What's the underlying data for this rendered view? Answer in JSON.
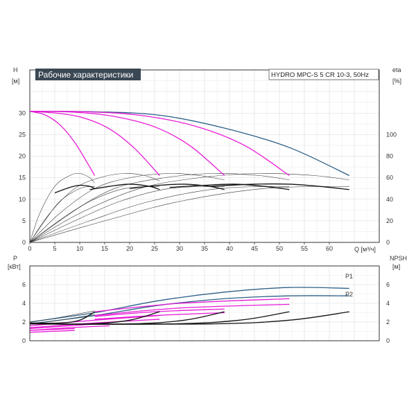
{
  "header": {
    "title": "Рабочие характеристики",
    "model": "HYDRO MPC-S 5 CR 10-3, 50Hz"
  },
  "colors": {
    "frame": "#333333",
    "grid": "#e1e1e1",
    "title_bg": "#3a4754",
    "blue": "#2b5f87",
    "magenta": "#e81ad7",
    "black": "#111111",
    "thin_black": "#333333"
  },
  "chart_data": [
    {
      "id": "top",
      "type": "line",
      "ylabel_left": "H",
      "ylabel_left_unit": "[м]",
      "ylabel_right": "eta",
      "ylabel_right_unit": "[%]",
      "xlabel": "Q [м³/ч]",
      "xlim": [
        0,
        70
      ],
      "ylim_left": [
        0,
        40
      ],
      "ylim_right": [
        0,
        160
      ],
      "xticks": [
        "0",
        "5",
        "10",
        "15",
        "20",
        "25",
        "30",
        "35",
        "40",
        "45",
        "50",
        "55",
        "60"
      ],
      "yticks_left": [
        "0",
        "5",
        "10",
        "15",
        "20",
        "25",
        "30"
      ],
      "yticks_right": [
        "0",
        "20",
        "40",
        "60",
        "80",
        "100"
      ],
      "grid": true,
      "head_curves": [
        {
          "name": "",
          "color": "blue",
          "x": [
            0,
            13,
            26,
            39,
            52,
            64
          ],
          "y": [
            30.4,
            30.3,
            29.5,
            26.5,
            22,
            15.5
          ]
        },
        {
          "name": "",
          "color": "magenta",
          "x": [
            0,
            3,
            6,
            9,
            12,
            13
          ],
          "y": [
            30.4,
            29.6,
            27.3,
            23.2,
            17.5,
            15.5
          ]
        },
        {
          "name": "",
          "color": "magenta",
          "x": [
            0,
            6,
            11,
            16,
            21,
            26
          ],
          "y": [
            30.4,
            29.9,
            28.8,
            26.3,
            21.8,
            15.5
          ]
        },
        {
          "name": "",
          "color": "magenta",
          "x": [
            0,
            9,
            17,
            25,
            32,
            39
          ],
          "y": [
            30.4,
            30.2,
            29.2,
            26.8,
            22.5,
            15.5
          ]
        },
        {
          "name": "",
          "color": "magenta",
          "x": [
            0,
            11,
            22,
            33,
            43,
            52
          ],
          "y": [
            30.4,
            30.3,
            29.5,
            27,
            22.5,
            15.5
          ]
        }
      ],
      "eta_curves": [
        {
          "name": "",
          "color": "thin_black",
          "x": [
            0,
            2,
            5,
            8,
            10,
            12,
            13
          ],
          "y": [
            0,
            27,
            52,
            62,
            64,
            60,
            55
          ]
        },
        {
          "name": "",
          "color": "thin_black",
          "x": [
            0,
            4,
            9,
            14,
            19,
            23,
            26
          ],
          "y": [
            0,
            27,
            50,
            60,
            64,
            62,
            57
          ]
        },
        {
          "name": "",
          "color": "thin_black",
          "x": [
            0,
            6,
            13,
            20,
            28,
            34,
            39
          ],
          "y": [
            0,
            27,
            50,
            60,
            64,
            62,
            58
          ]
        },
        {
          "name": "",
          "color": "thin_black",
          "x": [
            0,
            8,
            17,
            27,
            37,
            46,
            52
          ],
          "y": [
            0,
            27,
            50,
            60,
            64,
            62,
            58
          ]
        },
        {
          "name": "",
          "color": "thin_black",
          "x": [
            0,
            10,
            22,
            34,
            46,
            57,
            64
          ],
          "y": [
            0,
            27,
            50,
            60,
            64,
            62,
            58
          ]
        },
        {
          "name": "",
          "color": "thin_black",
          "x": [
            0,
            3,
            6,
            10,
            13
          ],
          "y": [
            0,
            20,
            38,
            50,
            52
          ]
        },
        {
          "name": "",
          "color": "thin_black",
          "x": [
            0,
            6,
            12,
            19,
            26
          ],
          "y": [
            0,
            20,
            38,
            50,
            52
          ]
        },
        {
          "name": "",
          "color": "thin_black",
          "x": [
            0,
            9,
            18,
            28,
            39
          ],
          "y": [
            0,
            20,
            38,
            50,
            52
          ]
        },
        {
          "name": "",
          "color": "thin_black",
          "x": [
            0,
            12,
            24,
            38,
            52
          ],
          "y": [
            0,
            20,
            38,
            50,
            52
          ]
        },
        {
          "name": "",
          "color": "thin_black",
          "x": [
            0,
            15,
            30,
            47,
            64
          ],
          "y": [
            0,
            20,
            38,
            50,
            52
          ]
        },
        {
          "name": "",
          "color": "black",
          "x": [
            5,
            8,
            10,
            12,
            13
          ],
          "y": [
            46,
            51,
            53,
            52,
            50
          ]
        },
        {
          "name": "",
          "color": "black",
          "x": [
            12,
            16,
            20,
            24,
            26
          ],
          "y": [
            49,
            52,
            54,
            52,
            49
          ]
        },
        {
          "name": "",
          "color": "black",
          "x": [
            20,
            26,
            31,
            36,
            39
          ],
          "y": [
            50,
            53,
            54,
            52,
            49
          ]
        },
        {
          "name": "",
          "color": "black",
          "x": [
            28,
            35,
            41,
            47,
            52
          ],
          "y": [
            51,
            53,
            54,
            52,
            49
          ]
        },
        {
          "name": "",
          "color": "black",
          "x": [
            36,
            45,
            52,
            58,
            64
          ],
          "y": [
            52,
            54,
            54,
            52,
            49
          ]
        }
      ]
    },
    {
      "id": "bottom",
      "type": "line",
      "ylabel_left": "P",
      "ylabel_left_unit": "[кВт]",
      "ylabel_right": "NPSH",
      "ylabel_right_unit": "[м]",
      "xlim": [
        0,
        70
      ],
      "ylim_left": [
        0,
        8
      ],
      "ylim_right": [
        0,
        8
      ],
      "yticks_left": [
        "0",
        "2",
        "4",
        "6"
      ],
      "yticks_right": [
        "0",
        "2",
        "4",
        "6"
      ],
      "grid": true,
      "series_labels": [
        "P1",
        "P2"
      ],
      "power_curves": [
        {
          "name": "P1",
          "color": "blue",
          "x": [
            0,
            13,
            26,
            39,
            52,
            64
          ],
          "y": [
            2.0,
            3.0,
            4.3,
            5.2,
            5.7,
            5.6
          ]
        },
        {
          "name": "P2",
          "color": "blue",
          "x": [
            0,
            13,
            26,
            39,
            52,
            64
          ],
          "y": [
            1.8,
            2.7,
            3.8,
            4.5,
            4.8,
            4.8
          ]
        },
        {
          "name": "",
          "color": "thin_black",
          "x": [
            0,
            6,
            13
          ],
          "y": [
            2.0,
            2.5,
            3.2
          ]
        },
        {
          "name": "",
          "color": "thin_black",
          "x": [
            0,
            6,
            13
          ],
          "y": [
            1.8,
            2.2,
            2.8
          ]
        },
        {
          "name": "",
          "color": "magenta",
          "x": [
            0,
            4,
            9
          ],
          "y": [
            1.1,
            1.2,
            1.3
          ]
        },
        {
          "name": "",
          "color": "magenta",
          "x": [
            0,
            4,
            9
          ],
          "y": [
            0.9,
            1.0,
            1.1
          ]
        },
        {
          "name": "",
          "color": "magenta",
          "x": [
            0,
            8,
            16
          ],
          "y": [
            1.3,
            1.6,
            1.9
          ]
        },
        {
          "name": "",
          "color": "magenta",
          "x": [
            0,
            8,
            16
          ],
          "y": [
            1.1,
            1.4,
            1.6
          ]
        },
        {
          "name": "",
          "color": "magenta",
          "x": [
            0,
            13,
            26
          ],
          "y": [
            1.6,
            2.2,
            2.7
          ]
        },
        {
          "name": "",
          "color": "magenta",
          "x": [
            0,
            13,
            26
          ],
          "y": [
            1.4,
            1.9,
            2.3
          ]
        },
        {
          "name": "",
          "color": "magenta",
          "x": [
            13,
            25,
            39
          ],
          "y": [
            2.6,
            3.1,
            3.4
          ]
        },
        {
          "name": "",
          "color": "magenta",
          "x": [
            13,
            25,
            39
          ],
          "y": [
            2.3,
            2.7,
            3.0
          ]
        },
        {
          "name": "",
          "color": "magenta",
          "x": [
            13,
            30,
            52
          ],
          "y": [
            3.1,
            4.0,
            4.5
          ]
        },
        {
          "name": "",
          "color": "magenta",
          "x": [
            13,
            30,
            52
          ],
          "y": [
            2.7,
            3.5,
            3.9
          ]
        }
      ],
      "npsh_curves": [
        {
          "name": "",
          "color": "black",
          "x": [
            0,
            6,
            10,
            13
          ],
          "y": [
            1.9,
            1.9,
            2.2,
            3.1
          ]
        },
        {
          "name": "",
          "color": "black",
          "x": [
            0,
            12,
            20,
            26
          ],
          "y": [
            1.8,
            1.8,
            2.2,
            3.1
          ]
        },
        {
          "name": "",
          "color": "black",
          "x": [
            0,
            20,
            31,
            39
          ],
          "y": [
            1.8,
            1.8,
            2.2,
            3.1
          ]
        },
        {
          "name": "",
          "color": "black",
          "x": [
            0,
            28,
            42,
            52
          ],
          "y": [
            1.8,
            1.8,
            2.2,
            3.1
          ]
        },
        {
          "name": "",
          "color": "black",
          "x": [
            0,
            36,
            52,
            64
          ],
          "y": [
            1.8,
            1.8,
            2.2,
            3.1
          ]
        }
      ]
    }
  ]
}
